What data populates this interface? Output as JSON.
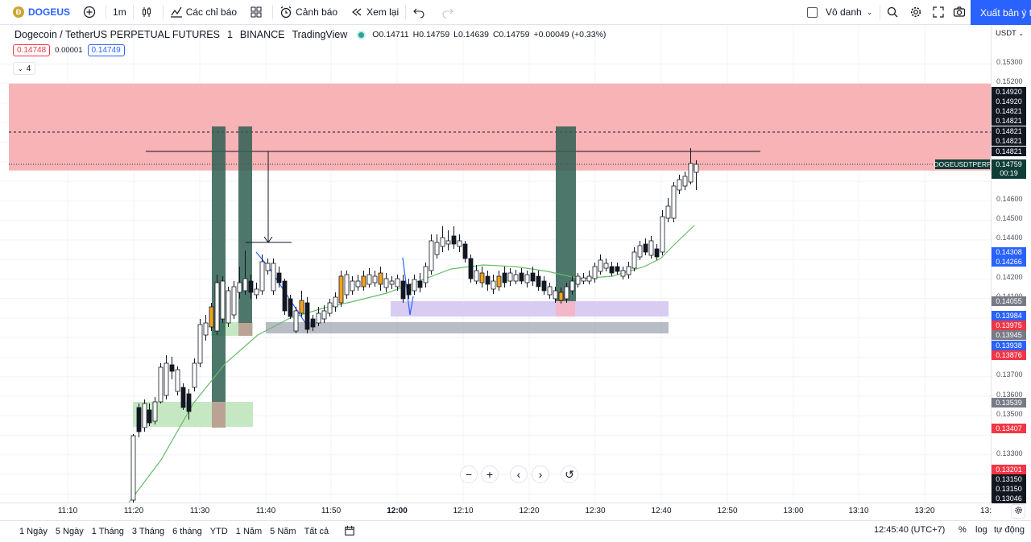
{
  "toolbar": {
    "symbol": "DOGEUS",
    "symbol_badge": "Ð",
    "interval": "1m",
    "indicators_label": "Các chỉ báo",
    "alerts_label": "Cảnh báo",
    "replay_label": "Xem lại",
    "layout_name": "Vô danh",
    "publish_label": "Xuất bản ý tưởng"
  },
  "legend": {
    "title": "Dogecoin / TetherUS PERPETUAL FUTURES",
    "interval": "1",
    "exchange": "BINANCE",
    "source": "TradingView",
    "open": "O0.14711",
    "high": "H0.14759",
    "low": "L0.14639",
    "close": "C0.14759",
    "change": "+0.00049 (+0.33%)",
    "bid": "0.14748",
    "spread": "0.00001",
    "ask": "0.14749",
    "indicator_count": "4"
  },
  "price_axis": {
    "currency": "USDT",
    "labels": [
      "0.15300",
      "0.15200",
      "0.14600",
      "0.14500",
      "0.14400",
      "0.14200",
      "0.14100",
      "0.13700",
      "0.13600",
      "0.13500",
      "0.13300"
    ],
    "tags": [
      {
        "text": "0.14920",
        "color": "#131722"
      },
      {
        "text": "0.14920",
        "color": "#131722"
      },
      {
        "text": "0.14821",
        "color": "#131722"
      },
      {
        "text": "0.14821",
        "color": "#131722"
      },
      {
        "text": "0.14821",
        "color": "#131722"
      },
      {
        "text": "0.14821",
        "color": "#131722"
      },
      {
        "text": "0.14821",
        "color": "#131722"
      },
      {
        "text": "0.14308",
        "color": "#2962ff"
      },
      {
        "text": "0.14266",
        "color": "#2962ff"
      },
      {
        "text": "0.14055",
        "color": "#787b86"
      },
      {
        "text": "0.13984",
        "color": "#2962ff"
      },
      {
        "text": "0.13975",
        "color": "#f23645"
      },
      {
        "text": "0.13945",
        "color": "#787b86"
      },
      {
        "text": "0.13938",
        "color": "#2962ff"
      },
      {
        "text": "0.13876",
        "color": "#f23645"
      },
      {
        "text": "0.13539",
        "color": "#787b86"
      },
      {
        "text": "0.13407",
        "color": "#f23645"
      },
      {
        "text": "0.13201",
        "color": "#f23645"
      },
      {
        "text": "0.13150",
        "color": "#131722"
      },
      {
        "text": "0.13150",
        "color": "#131722"
      },
      {
        "text": "0.13046",
        "color": "#131722"
      }
    ],
    "symbol_tag": "DOGEUSDTPERP",
    "last_price": "0.14759",
    "countdown": "00:19"
  },
  "time_axis": {
    "labels": [
      "11:10",
      "11:20",
      "11:30",
      "11:40",
      "11:50",
      "12:00",
      "12:10",
      "12:20",
      "12:30",
      "12:40",
      "12:50",
      "13:00",
      "13:10",
      "13:20",
      "13:"
    ]
  },
  "bottombar": {
    "ranges": [
      "1 Ngày",
      "5 Ngày",
      "1 Tháng",
      "3 Tháng",
      "6 tháng",
      "YTD",
      "1 Năm",
      "5 Năm",
      "Tất cả"
    ],
    "clock": "12:45:40 (UTC+7)",
    "percent": "%",
    "log": "log",
    "auto": "tự động"
  },
  "colors": {
    "up": "#ffffff",
    "down": "#131722",
    "accent": "#2962ff",
    "resistance_zone": "#f7b3b6",
    "ma_line": "#66bb6a",
    "dark_band": "#2f5f52"
  }
}
